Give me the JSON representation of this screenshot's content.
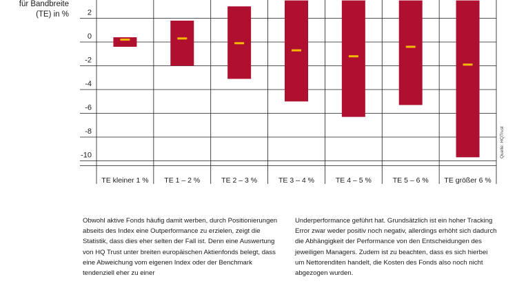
{
  "chart_data": {
    "type": "bar",
    "ylabel_lines": [
      "für Bandbreite",
      "(TE) in %"
    ],
    "ylim": [
      -11,
      3.5
    ],
    "yticks": [
      2,
      0,
      -2,
      -4,
      -6,
      -8,
      -10
    ],
    "categories": [
      "TE kleiner 1 %",
      "TE 1 – 2 %",
      "TE 2 – 3 %",
      "TE 3 – 4 %",
      "TE 4 – 5 %",
      "TE 5 – 6 %",
      "TE größer 6 %"
    ],
    "series": [
      {
        "low": -0.4,
        "high": 0.4
      },
      {
        "low": -2.0,
        "high": 1.8
      },
      {
        "low": -3.1,
        "high": 3.0
      },
      {
        "low": -5.0,
        "high": 3.5
      },
      {
        "low": -6.3,
        "high": 3.5
      },
      {
        "low": -5.3,
        "high": 3.5
      },
      {
        "low": -9.7,
        "high": 3.5
      }
    ],
    "marker_values": [
      0.2,
      0.3,
      -0.1,
      -0.7,
      -1.2,
      -0.4,
      -1.9
    ],
    "grid": true,
    "colors": {
      "bar": "#b01030",
      "marker": "#f5b800",
      "grid": "#1a1a1a"
    }
  },
  "source": "Quelle: HQTrust",
  "text": {
    "left": "Obwohl aktive Fonds häufig damit werben, durch Posi­tionierungen abseits des Index eine Outperformance zu erzielen, zeigt die Statistik, dass dies eher selten der Fall ist. Denn eine Auswertung von HQ Trust unter breiten eu­ropäischen Aktienfonds belegt, dass eine Abweichung vom eigenen Index oder der Benchmark tendenziell eher zu einer",
    "right": "Underperformance geführt hat. Grundsätzlich ist ein hoher Tracking Error zwar weder positiv noch negativ, allerdings erhöht sich dadurch die Abhängigkeit der Performance von den Entscheidungen des jeweiligen Managers. Zudem ist zu beachten, dass es sich hierbei um Nettorenditen handelt, die Kosten des Fonds also noch nicht abgezogen wurden."
  }
}
